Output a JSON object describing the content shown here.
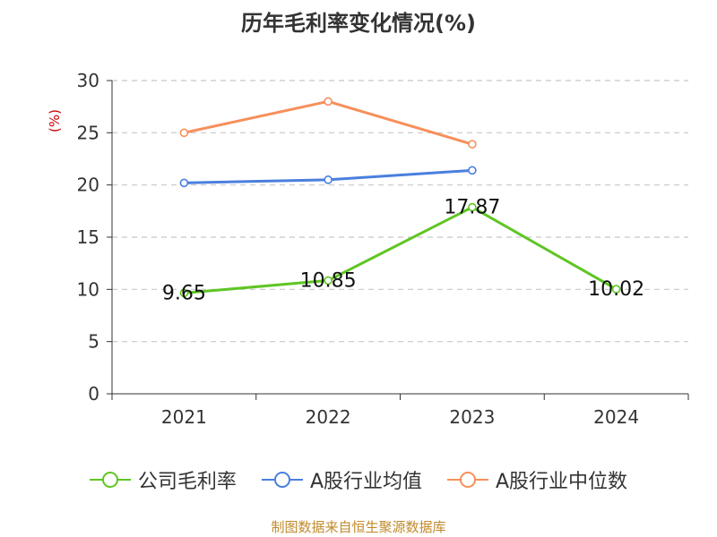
{
  "chart_data": {
    "type": "line",
    "title": "历年毛利率变化情况(%)",
    "ylabel": "(%)",
    "categories": [
      "2021",
      "2022",
      "2023",
      "2024"
    ],
    "ylim": [
      0,
      30
    ],
    "yticks": [
      0,
      5,
      10,
      15,
      20,
      25,
      30
    ],
    "grid": true,
    "legend_position": "bottom",
    "series": [
      {
        "name": "公司毛利率",
        "color": "#5fc524",
        "values": [
          9.65,
          10.85,
          17.87,
          10.02
        ],
        "data_labels": [
          "9.65",
          "10.85",
          "17.87",
          "10.02"
        ]
      },
      {
        "name": "A股行业均值",
        "color": "#4a7fde",
        "values": [
          20.2,
          20.5,
          21.4,
          null
        ]
      },
      {
        "name": "A股行业中位数",
        "color": "#f78f5a",
        "values": [
          25.0,
          28.0,
          23.9,
          null
        ]
      }
    ]
  },
  "footer": {
    "source": "制图数据来自恒生聚源数据库"
  }
}
